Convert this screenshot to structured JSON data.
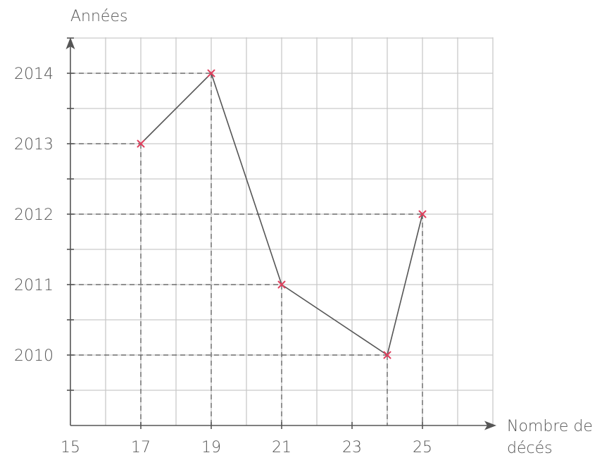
{
  "chart_data": {
    "type": "line",
    "title": "",
    "xlabel": "Nombre de décés",
    "xlabel_lines": [
      "Nombre de",
      "décés"
    ],
    "ylabel": "Années",
    "xlim": [
      15,
      27
    ],
    "ylim": [
      2009,
      2014.5
    ],
    "x_ticks": [
      15,
      17,
      19,
      21,
      23,
      25
    ],
    "y_ticks": [
      2010,
      2011,
      2012,
      2013,
      2014
    ],
    "grid": true,
    "series": [
      {
        "points": [
          {
            "x": 17,
            "y": 2013
          },
          {
            "x": 19,
            "y": 2014
          },
          {
            "x": 21,
            "y": 2011
          },
          {
            "x": 24,
            "y": 2010
          },
          {
            "x": 25,
            "y": 2012
          }
        ]
      }
    ],
    "colors": {
      "line": "#555555",
      "marker": "#e0405e",
      "grid": "#c9c9c9",
      "text": "#555555"
    }
  }
}
